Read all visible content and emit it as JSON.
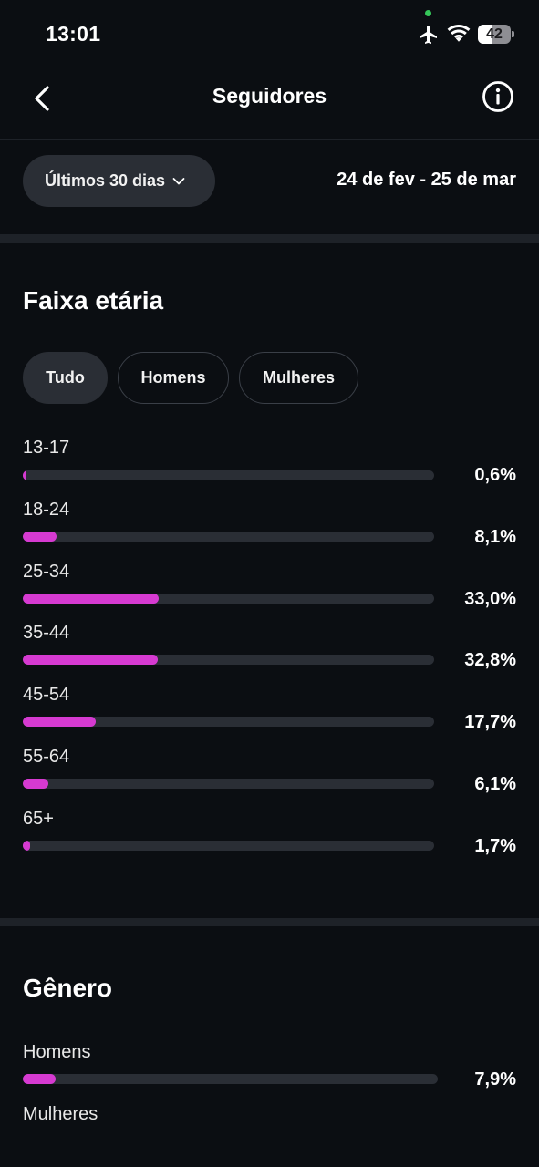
{
  "status_bar": {
    "time": "13:01",
    "battery_level": "42",
    "icons": [
      "airplane-icon",
      "wifi-icon",
      "battery-icon"
    ]
  },
  "header": {
    "title": "Seguidores",
    "back_icon": "chevron-left-icon",
    "info_icon": "info-icon"
  },
  "filter": {
    "period_label": "Últimos 30 dias",
    "date_range": "24 de fev - 25 de mar"
  },
  "age_section": {
    "title": "Faixa etária",
    "tabs": [
      {
        "label": "Tudo",
        "active": true
      },
      {
        "label": "Homens",
        "active": false
      },
      {
        "label": "Mulheres",
        "active": false
      }
    ],
    "rows": [
      {
        "label": "13-17",
        "value": "0,6%",
        "percent": 0.6
      },
      {
        "label": "18-24",
        "value": "8,1%",
        "percent": 8.1
      },
      {
        "label": "25-34",
        "value": "33,0%",
        "percent": 33.0
      },
      {
        "label": "35-44",
        "value": "32,8%",
        "percent": 32.8
      },
      {
        "label": "45-54",
        "value": "17,7%",
        "percent": 17.7
      },
      {
        "label": "55-64",
        "value": "6,1%",
        "percent": 6.1
      },
      {
        "label": "65+",
        "value": "1,7%",
        "percent": 1.7
      }
    ]
  },
  "gender_section": {
    "title": "Gênero",
    "rows": [
      {
        "label": "Homens",
        "value": "7,9%",
        "percent": 7.9
      },
      {
        "label": "Mulheres"
      }
    ]
  },
  "colors": {
    "background": "#0b0e12",
    "bar_fill": "#d63ad1",
    "bar_track": "#2a2e35",
    "pill_active": "#2a2e35",
    "camera_indicator": "#35c759"
  }
}
